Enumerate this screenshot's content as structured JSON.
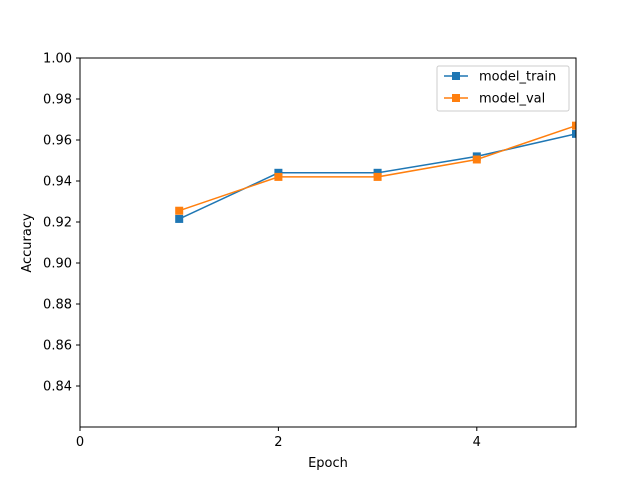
{
  "chart_data": {
    "type": "line",
    "title": "",
    "xlabel": "Epoch",
    "ylabel": "Accuracy",
    "xlim": [
      0,
      5
    ],
    "ylim": [
      0.82,
      1.0
    ],
    "xticks": [
      0,
      2,
      4
    ],
    "yticks": [
      0.84,
      0.86,
      0.88,
      0.9,
      0.92,
      0.94,
      0.96,
      0.98,
      1.0
    ],
    "ytick_labels": [
      "0.84",
      "0.86",
      "0.88",
      "0.90",
      "0.92",
      "0.94",
      "0.96",
      "0.98",
      "1.00"
    ],
    "grid": false,
    "legend": "top-right",
    "marker": "square",
    "series": [
      {
        "name": "model_train",
        "color": "#1f77b4",
        "x": [
          1,
          2,
          3,
          4,
          5
        ],
        "y": [
          0.9215,
          0.944,
          0.944,
          0.952,
          0.963
        ]
      },
      {
        "name": "model_val",
        "color": "#ff7f0e",
        "x": [
          1,
          2,
          3,
          4,
          5
        ],
        "y": [
          0.9255,
          0.942,
          0.942,
          0.9505,
          0.967
        ]
      }
    ]
  }
}
